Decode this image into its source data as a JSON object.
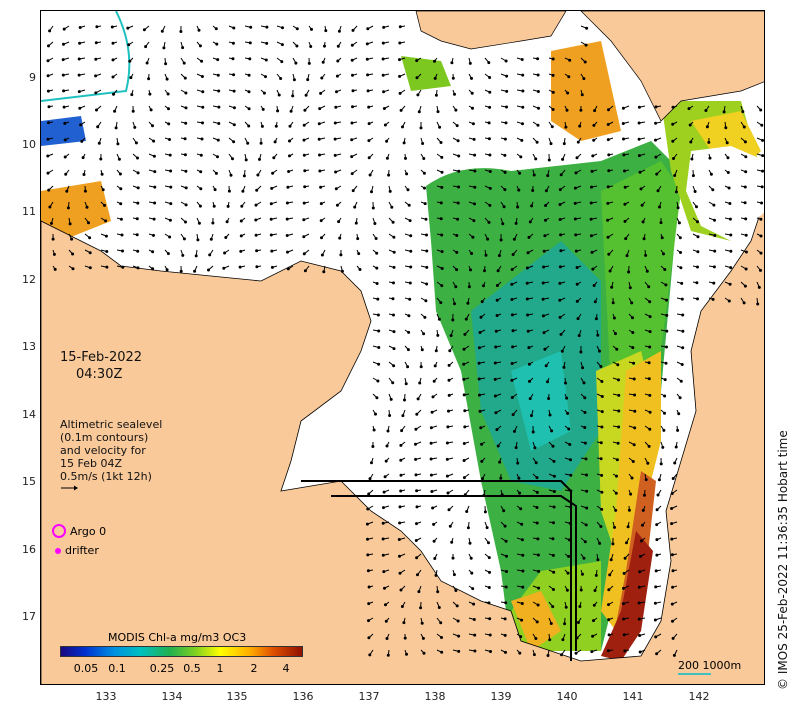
{
  "date": {
    "day": "15-Feb-2022",
    "time": "04:30Z"
  },
  "velocity_note": [
    "Altimetric sealevel",
    "(0.1m contours)",
    "and velocity for",
    "15 Feb 04Z",
    "0.5m/s (1kt 12h)"
  ],
  "legend": {
    "argo": "Argo 0",
    "drifter": "drifter"
  },
  "colorbar": {
    "title": "MODIS Chl-a mg/m3 OC3",
    "ticks": [
      "0.05",
      "0.1",
      "0.25",
      "0.5",
      "1",
      "2",
      "4"
    ]
  },
  "scale": {
    "label": "200  1000m"
  },
  "credit": "© IMOS 25-Feb-2022 11:36:35 Hobart time",
  "axes": {
    "lat_ticks": [
      "9",
      "10",
      "11",
      "12",
      "13",
      "14",
      "15",
      "16",
      "17"
    ],
    "lon_ticks": [
      "133",
      "134",
      "135",
      "136",
      "137",
      "138",
      "139",
      "140",
      "141",
      "142"
    ]
  },
  "colors": {
    "land": "#f9c99a",
    "ocean": "#ffffff",
    "arrows": "#000000",
    "argo": "#ff00ff",
    "contour": "#40c0c0"
  }
}
